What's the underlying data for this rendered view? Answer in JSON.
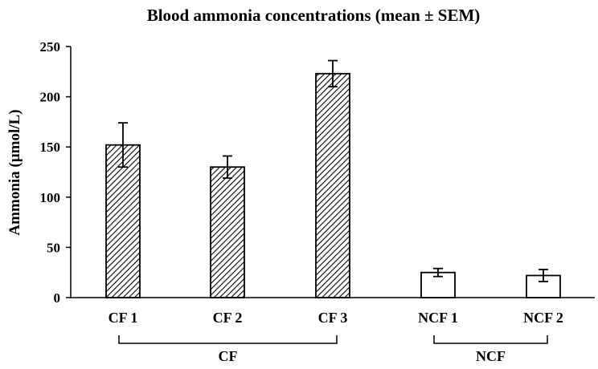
{
  "chart_data": {
    "type": "bar",
    "title": "Blood ammonia concentrations (mean ± SEM)",
    "xlabel": "",
    "ylabel": "Ammonia (µmol/L)",
    "ylim": [
      0,
      250
    ],
    "yticks": [
      0,
      50,
      100,
      150,
      200,
      250
    ],
    "categories": [
      "CF 1",
      "CF 2",
      "CF 3",
      "NCF 1",
      "NCF 2"
    ],
    "values": [
      152,
      130,
      223,
      25,
      22
    ],
    "errors": [
      22,
      11,
      13,
      4,
      6
    ],
    "bar_fill": [
      "hatched",
      "hatched",
      "hatched",
      "white",
      "white"
    ],
    "groups": [
      {
        "label": "CF",
        "members": [
          "CF 1",
          "CF 2",
          "CF 3"
        ]
      },
      {
        "label": "NCF",
        "members": [
          "NCF 1",
          "NCF 2"
        ]
      }
    ],
    "grid": false,
    "legend": "none"
  }
}
